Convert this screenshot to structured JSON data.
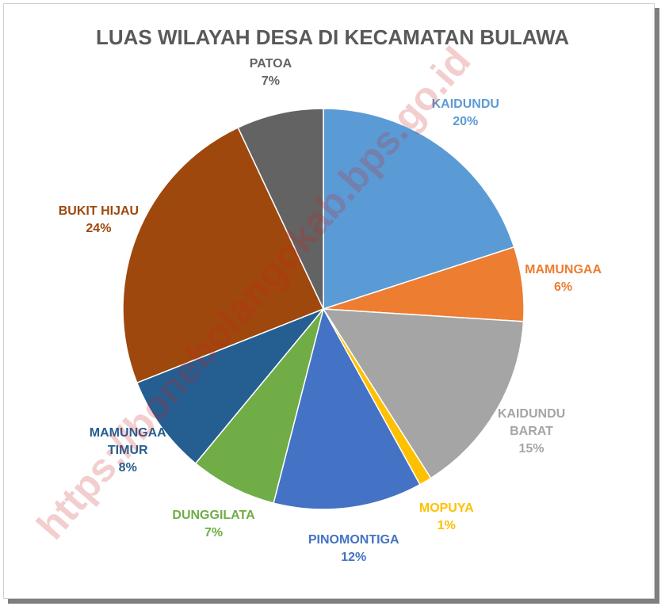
{
  "chart_data": {
    "type": "pie",
    "title": "LUAS WILAYAH DESA DI KECAMATAN BULAWA",
    "watermark": "https://bonebolangokab.bps.go.id",
    "categories": [
      "KAIDUNDU",
      "MAMUNGAA",
      "KAIDUNDU BARAT",
      "MOPUYA",
      "PINOMONTIGA",
      "DUNGGILATA",
      "MAMUNGAA TIMUR",
      "BUKIT HIJAU",
      "PATOA"
    ],
    "values": [
      20,
      6,
      15,
      1,
      12,
      7,
      8,
      24,
      7
    ],
    "value_labels": [
      "20%",
      "6%",
      "15%",
      "1%",
      "12%",
      "7%",
      "8%",
      "24%",
      "7%"
    ],
    "colors": [
      "#5b9bd5",
      "#ed7d31",
      "#a5a5a5",
      "#ffc000",
      "#4472c4",
      "#70ad47",
      "#255e91",
      "#9e480e",
      "#636363"
    ]
  }
}
